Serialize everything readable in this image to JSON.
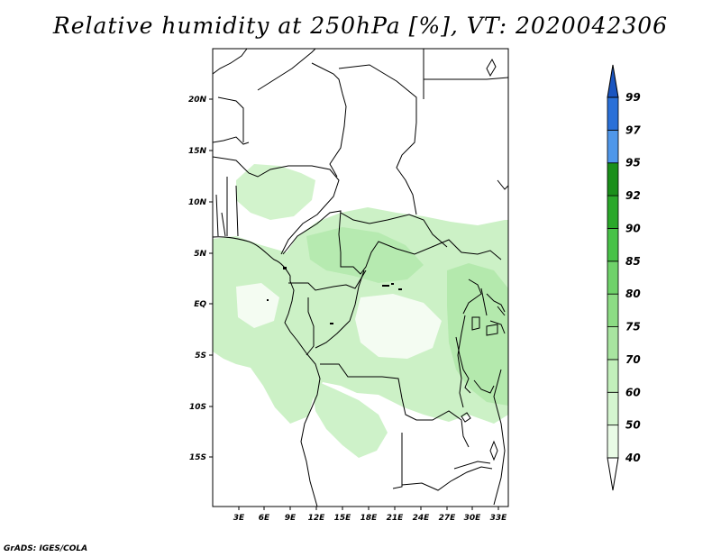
{
  "title": "Relative humidity at 250hPa [%], VT: 2020042306",
  "credit": "GrADS: IGES/COLA",
  "map": {
    "lon_range": [
      0,
      34
    ],
    "lat_range": [
      -20,
      25
    ],
    "x_ticks": [
      "3E",
      "6E",
      "9E",
      "12E",
      "15E",
      "18E",
      "21E",
      "24E",
      "27E",
      "30E",
      "33E"
    ],
    "y_ticks": [
      "20N",
      "15N",
      "10N",
      "5N",
      "EQ",
      "5S",
      "10S",
      "15S"
    ],
    "fill_color_dominant": "#b8ecb2"
  },
  "colorbar": {
    "levels": [
      "40",
      "50",
      "60",
      "70",
      "75",
      "80",
      "85",
      "90",
      "92",
      "95",
      "97",
      "99"
    ],
    "colors": [
      "#ffffff",
      "#e9fbe6",
      "#d4f5cf",
      "#c2efbb",
      "#a8e5a0",
      "#8cdc84",
      "#6fd26a",
      "#48c248",
      "#2aa82a",
      "#1a8f1a",
      "#4f97ea",
      "#2a70d8",
      "#1a55c0"
    ]
  }
}
